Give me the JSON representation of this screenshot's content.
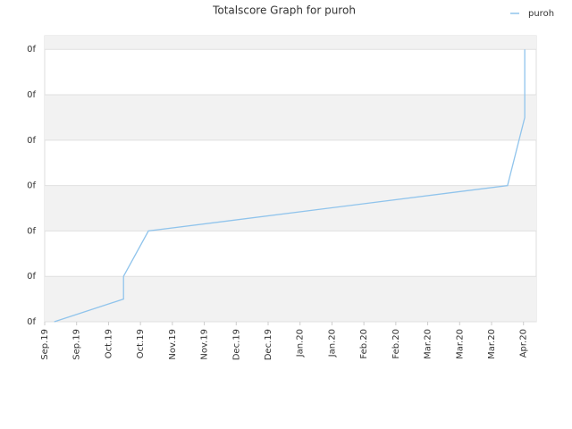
{
  "chart_data": {
    "type": "line",
    "title": "Totalscore Graph for puroh",
    "x": [
      0.3,
      2.47,
      2.47,
      3.25,
      14.5,
      15.04,
      15.04
    ],
    "series": [
      {
        "name": "puroh",
        "color": "#90c4ec",
        "values": [
          0,
          0.5,
          1,
          2,
          3,
          4.5,
          6
        ]
      }
    ],
    "xlim": [
      0,
      15.4
    ],
    "xticks": [
      {
        "value": 0,
        "label": "Sep.19"
      },
      {
        "value": 1,
        "label": "Sep.19"
      },
      {
        "value": 2,
        "label": "Oct.19"
      },
      {
        "value": 3,
        "label": "Oct.19"
      },
      {
        "value": 4,
        "label": "Nov.19"
      },
      {
        "value": 5,
        "label": "Nov.19"
      },
      {
        "value": 6,
        "label": "Dec.19"
      },
      {
        "value": 7,
        "label": "Dec.19"
      },
      {
        "value": 8,
        "label": "Jan.20"
      },
      {
        "value": 9,
        "label": "Jan.20"
      },
      {
        "value": 10,
        "label": "Feb.20"
      },
      {
        "value": 11,
        "label": "Feb.20"
      },
      {
        "value": 12,
        "label": "Mar.20"
      },
      {
        "value": 13,
        "label": "Mar.20"
      },
      {
        "value": 14,
        "label": "Mar.20"
      },
      {
        "value": 15,
        "label": "Apr.20"
      }
    ],
    "ylim": [
      0,
      6.3
    ],
    "yticks": [
      {
        "value": 0,
        "label": "0f"
      },
      {
        "value": 1,
        "label": "0f"
      },
      {
        "value": 2,
        "label": "0f"
      },
      {
        "value": 3,
        "label": "0f"
      },
      {
        "value": 4,
        "label": "0f"
      },
      {
        "value": 5,
        "label": "0f"
      },
      {
        "value": 6,
        "label": "0f"
      }
    ],
    "grid": true,
    "legend": "top-right"
  }
}
